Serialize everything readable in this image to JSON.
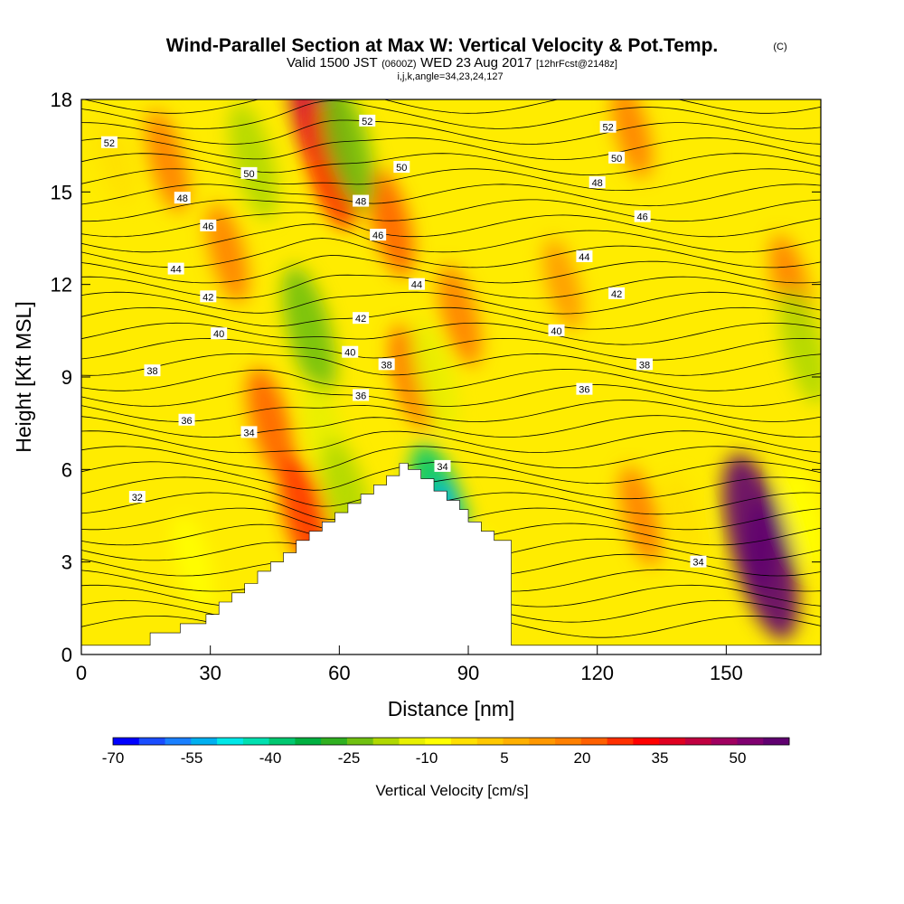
{
  "title": {
    "main": "Wind-Parallel Section at Max W: Vertical Velocity & Pot.Temp.",
    "copyright": "(C)",
    "valid_prefix": "Valid 1500 JST",
    "utc": "(0600Z)",
    "valid_date": "WED 23 Aug 2017",
    "forecast": "[12hrFcst@2148z]",
    "indices": "i,j,k,angle=34,23,24,127"
  },
  "chart_data": {
    "type": "heatmap",
    "title": "Wind-Parallel Section at Max W: Vertical Velocity & Pot.Temp.",
    "xlabel": "Distance [nm]",
    "ylabel": "Height [Kft MSL]",
    "xlim": [
      0,
      172
    ],
    "ylim": [
      0,
      18
    ],
    "x_ticks": [
      0,
      30,
      60,
      90,
      120,
      150
    ],
    "y_ticks": [
      0,
      3,
      6,
      9,
      12,
      15,
      18
    ],
    "colorbar": {
      "title": "Vertical Velocity [cm/s]",
      "labels": [
        "-70",
        "-55",
        "-40",
        "-25",
        "-10",
        "5",
        "20",
        "35",
        "50"
      ],
      "colors": [
        "#0000ff",
        "#1a4dff",
        "#1a80ff",
        "#00b0f0",
        "#00e8e8",
        "#00e0b0",
        "#00c870",
        "#00b040",
        "#30b020",
        "#70c010",
        "#b0d800",
        "#e8f000",
        "#ffff00",
        "#ffe000",
        "#ffc800",
        "#ffb000",
        "#ff9800",
        "#ff8000",
        "#ff6000",
        "#ff3000",
        "#ff0000",
        "#e00020",
        "#c00040",
        "#a00060",
        "#800070",
        "#600070"
      ]
    },
    "updrafts": [
      {
        "x": 20,
        "y": 16,
        "value": 15
      },
      {
        "x": 34,
        "y": 13,
        "value": 14
      },
      {
        "x": 44,
        "y": 7.5,
        "value": 20
      },
      {
        "x": 52,
        "y": 4.5,
        "value": 25
      },
      {
        "x": 55.5,
        "y": 17.3,
        "value": 40
      },
      {
        "x": 58,
        "y": 16,
        "value": 30
      },
      {
        "x": 72,
        "y": 14,
        "value": 18
      },
      {
        "x": 77,
        "y": 9,
        "value": 16
      },
      {
        "x": 88,
        "y": 11,
        "value": 15
      },
      {
        "x": 112,
        "y": 12,
        "value": 10
      },
      {
        "x": 128,
        "y": 17,
        "value": 12
      },
      {
        "x": 130,
        "y": 4.5,
        "value": 14
      },
      {
        "x": 158,
        "y": 3.5,
        "value": 55
      },
      {
        "x": 165,
        "y": 12,
        "value": 14
      }
    ],
    "downdrafts": [
      {
        "x": 40,
        "y": 16,
        "value": -22
      },
      {
        "x": 62,
        "y": 16.5,
        "value": -28
      },
      {
        "x": 53,
        "y": 10.5,
        "value": -28
      },
      {
        "x": 57,
        "y": 7,
        "value": -20
      },
      {
        "x": 62,
        "y": 5,
        "value": -25
      },
      {
        "x": 84,
        "y": 4.3,
        "value": -42
      },
      {
        "x": 82,
        "y": 9,
        "value": -20
      },
      {
        "x": 95,
        "y": 2.5,
        "value": -12
      },
      {
        "x": 26,
        "y": 3,
        "value": -12
      },
      {
        "x": 8,
        "y": 16,
        "value": -8
      },
      {
        "x": 140,
        "y": 4.5,
        "value": -8
      },
      {
        "x": 168,
        "y": 10,
        "value": -22
      },
      {
        "x": 168,
        "y": 4.5,
        "value": -15
      }
    ],
    "contour_labels": [
      {
        "text": "52",
        "x": 6.5,
        "y": 16.6
      },
      {
        "text": "52",
        "x": 66.5,
        "y": 17.3
      },
      {
        "text": "52",
        "x": 122.5,
        "y": 17.1
      },
      {
        "text": "50",
        "x": 39,
        "y": 15.6
      },
      {
        "text": "50",
        "x": 74.5,
        "y": 15.8
      },
      {
        "text": "50",
        "x": 124.5,
        "y": 16.1
      },
      {
        "text": "48",
        "x": 23.5,
        "y": 14.8
      },
      {
        "text": "48",
        "x": 65,
        "y": 14.7
      },
      {
        "text": "48",
        "x": 120,
        "y": 15.3
      },
      {
        "text": "46",
        "x": 29.5,
        "y": 13.9
      },
      {
        "text": "46",
        "x": 69,
        "y": 13.6
      },
      {
        "text": "46",
        "x": 130.5,
        "y": 14.2
      },
      {
        "text": "44",
        "x": 22,
        "y": 12.5
      },
      {
        "text": "44",
        "x": 78,
        "y": 12.0
      },
      {
        "text": "44",
        "x": 117,
        "y": 12.9
      },
      {
        "text": "42",
        "x": 29.5,
        "y": 11.6
      },
      {
        "text": "42",
        "x": 65,
        "y": 10.9
      },
      {
        "text": "42",
        "x": 124.5,
        "y": 11.7
      },
      {
        "text": "40",
        "x": 32,
        "y": 10.4
      },
      {
        "text": "40",
        "x": 62.5,
        "y": 9.8
      },
      {
        "text": "40",
        "x": 110.5,
        "y": 10.5
      },
      {
        "text": "38",
        "x": 16.5,
        "y": 9.2
      },
      {
        "text": "38",
        "x": 71,
        "y": 9.4
      },
      {
        "text": "38",
        "x": 131,
        "y": 9.4
      },
      {
        "text": "36",
        "x": 24.5,
        "y": 7.6
      },
      {
        "text": "36",
        "x": 65,
        "y": 8.4
      },
      {
        "text": "36",
        "x": 117,
        "y": 8.6
      },
      {
        "text": "34",
        "x": 39,
        "y": 7.2
      },
      {
        "text": "34",
        "x": 84,
        "y": 6.1
      },
      {
        "text": "34",
        "x": 143.5,
        "y": 3.0
      },
      {
        "text": "32",
        "x": 13,
        "y": 5.1
      }
    ],
    "terrain": [
      [
        0,
        0.3
      ],
      [
        16,
        0.3
      ],
      [
        16,
        0.7
      ],
      [
        23,
        0.7
      ],
      [
        23,
        1.0
      ],
      [
        29,
        1.0
      ],
      [
        29,
        1.3
      ],
      [
        32,
        1.3
      ],
      [
        32,
        1.7
      ],
      [
        35,
        1.7
      ],
      [
        35,
        2.0
      ],
      [
        38,
        2.0
      ],
      [
        38,
        2.3
      ],
      [
        41,
        2.3
      ],
      [
        41,
        2.7
      ],
      [
        44,
        2.7
      ],
      [
        44,
        3.0
      ],
      [
        47,
        3.0
      ],
      [
        47,
        3.3
      ],
      [
        50,
        3.3
      ],
      [
        50,
        3.7
      ],
      [
        53,
        3.7
      ],
      [
        53,
        4.0
      ],
      [
        56,
        4.0
      ],
      [
        56,
        4.3
      ],
      [
        59,
        4.3
      ],
      [
        59,
        4.6
      ],
      [
        62,
        4.6
      ],
      [
        62,
        4.9
      ],
      [
        65,
        4.9
      ],
      [
        65,
        5.2
      ],
      [
        68,
        5.2
      ],
      [
        68,
        5.5
      ],
      [
        71,
        5.5
      ],
      [
        71,
        5.8
      ],
      [
        74,
        5.8
      ],
      [
        74,
        6.2
      ],
      [
        76,
        6.2
      ],
      [
        76,
        6.0
      ],
      [
        79,
        6.0
      ],
      [
        79,
        5.7
      ],
      [
        82,
        5.7
      ],
      [
        82,
        5.3
      ],
      [
        85,
        5.3
      ],
      [
        85,
        5.0
      ],
      [
        88,
        5.0
      ],
      [
        88,
        4.7
      ],
      [
        90,
        4.7
      ],
      [
        90,
        4.3
      ],
      [
        93,
        4.3
      ],
      [
        93,
        4.0
      ],
      [
        96,
        4.0
      ],
      [
        96,
        3.7
      ],
      [
        100,
        3.7
      ],
      [
        100,
        0.3
      ],
      [
        172,
        0.3
      ]
    ]
  },
  "colorbar": {
    "title": "Vertical Velocity [cm/s]",
    "labels": [
      "-70",
      "-55",
      "-40",
      "-25",
      "-10",
      "5",
      "20",
      "35",
      "50"
    ]
  }
}
